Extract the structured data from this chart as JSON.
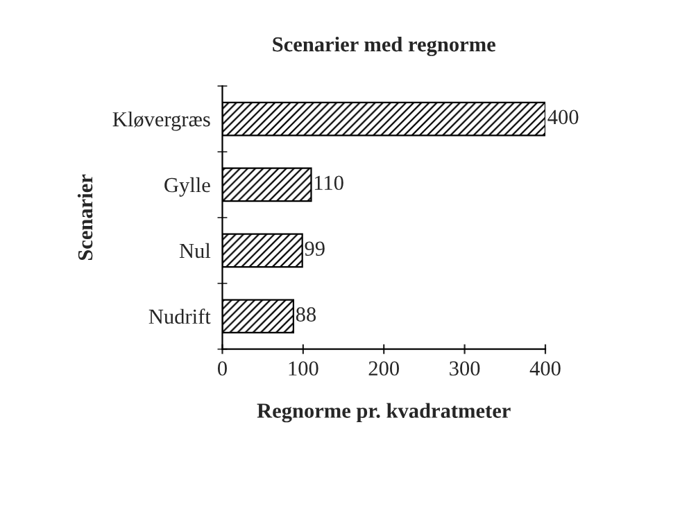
{
  "chart_data": {
    "type": "bar",
    "orientation": "horizontal",
    "title": "Scenarier med regnorme",
    "xlabel": "Regnorme pr. kvadratmeter",
    "ylabel": "Scenarier",
    "categories": [
      "Kløvergræs",
      "Gylle",
      "Nul",
      "Nudrift"
    ],
    "values": [
      400,
      110,
      99,
      88
    ],
    "color": "#000000",
    "xlim": [
      0,
      400
    ],
    "xticks": [
      0,
      100,
      200,
      300,
      400
    ],
    "grid": false,
    "data_labels": true
  }
}
